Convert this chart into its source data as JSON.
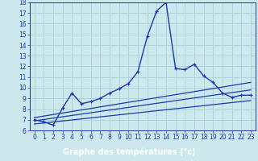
{
  "title": "Graphe des températures (°c)",
  "bg_color": "#cce8ed",
  "line_color": "#1a3aab",
  "label_bar_color": "#1a3aab",
  "label_text_color": "#ffffff",
  "grid_color": "#aad4dc",
  "xlim": [
    -0.5,
    23.5
  ],
  "ylim": [
    6,
    18
  ],
  "xticks": [
    0,
    1,
    2,
    3,
    4,
    5,
    6,
    7,
    8,
    9,
    10,
    11,
    12,
    13,
    14,
    15,
    16,
    17,
    18,
    19,
    20,
    21,
    22,
    23
  ],
  "yticks": [
    6,
    7,
    8,
    9,
    10,
    11,
    12,
    13,
    14,
    15,
    16,
    17,
    18
  ],
  "main_x": [
    0,
    1,
    2,
    3,
    4,
    5,
    6,
    7,
    8,
    9,
    10,
    11,
    12,
    13,
    14,
    15,
    16,
    17,
    18,
    19,
    20,
    21,
    22,
    23
  ],
  "main_y": [
    7.0,
    6.8,
    6.5,
    8.1,
    9.5,
    8.5,
    8.7,
    9.0,
    9.5,
    9.9,
    10.4,
    11.5,
    14.8,
    17.2,
    18.0,
    11.8,
    11.7,
    12.2,
    11.1,
    10.5,
    9.5,
    9.1,
    9.3,
    9.3
  ],
  "diag_lines": [
    {
      "x": [
        0,
        23
      ],
      "y": [
        6.6,
        8.8
      ]
    },
    {
      "x": [
        0,
        23
      ],
      "y": [
        6.9,
        9.8
      ]
    },
    {
      "x": [
        0,
        23
      ],
      "y": [
        7.2,
        10.5
      ]
    }
  ]
}
